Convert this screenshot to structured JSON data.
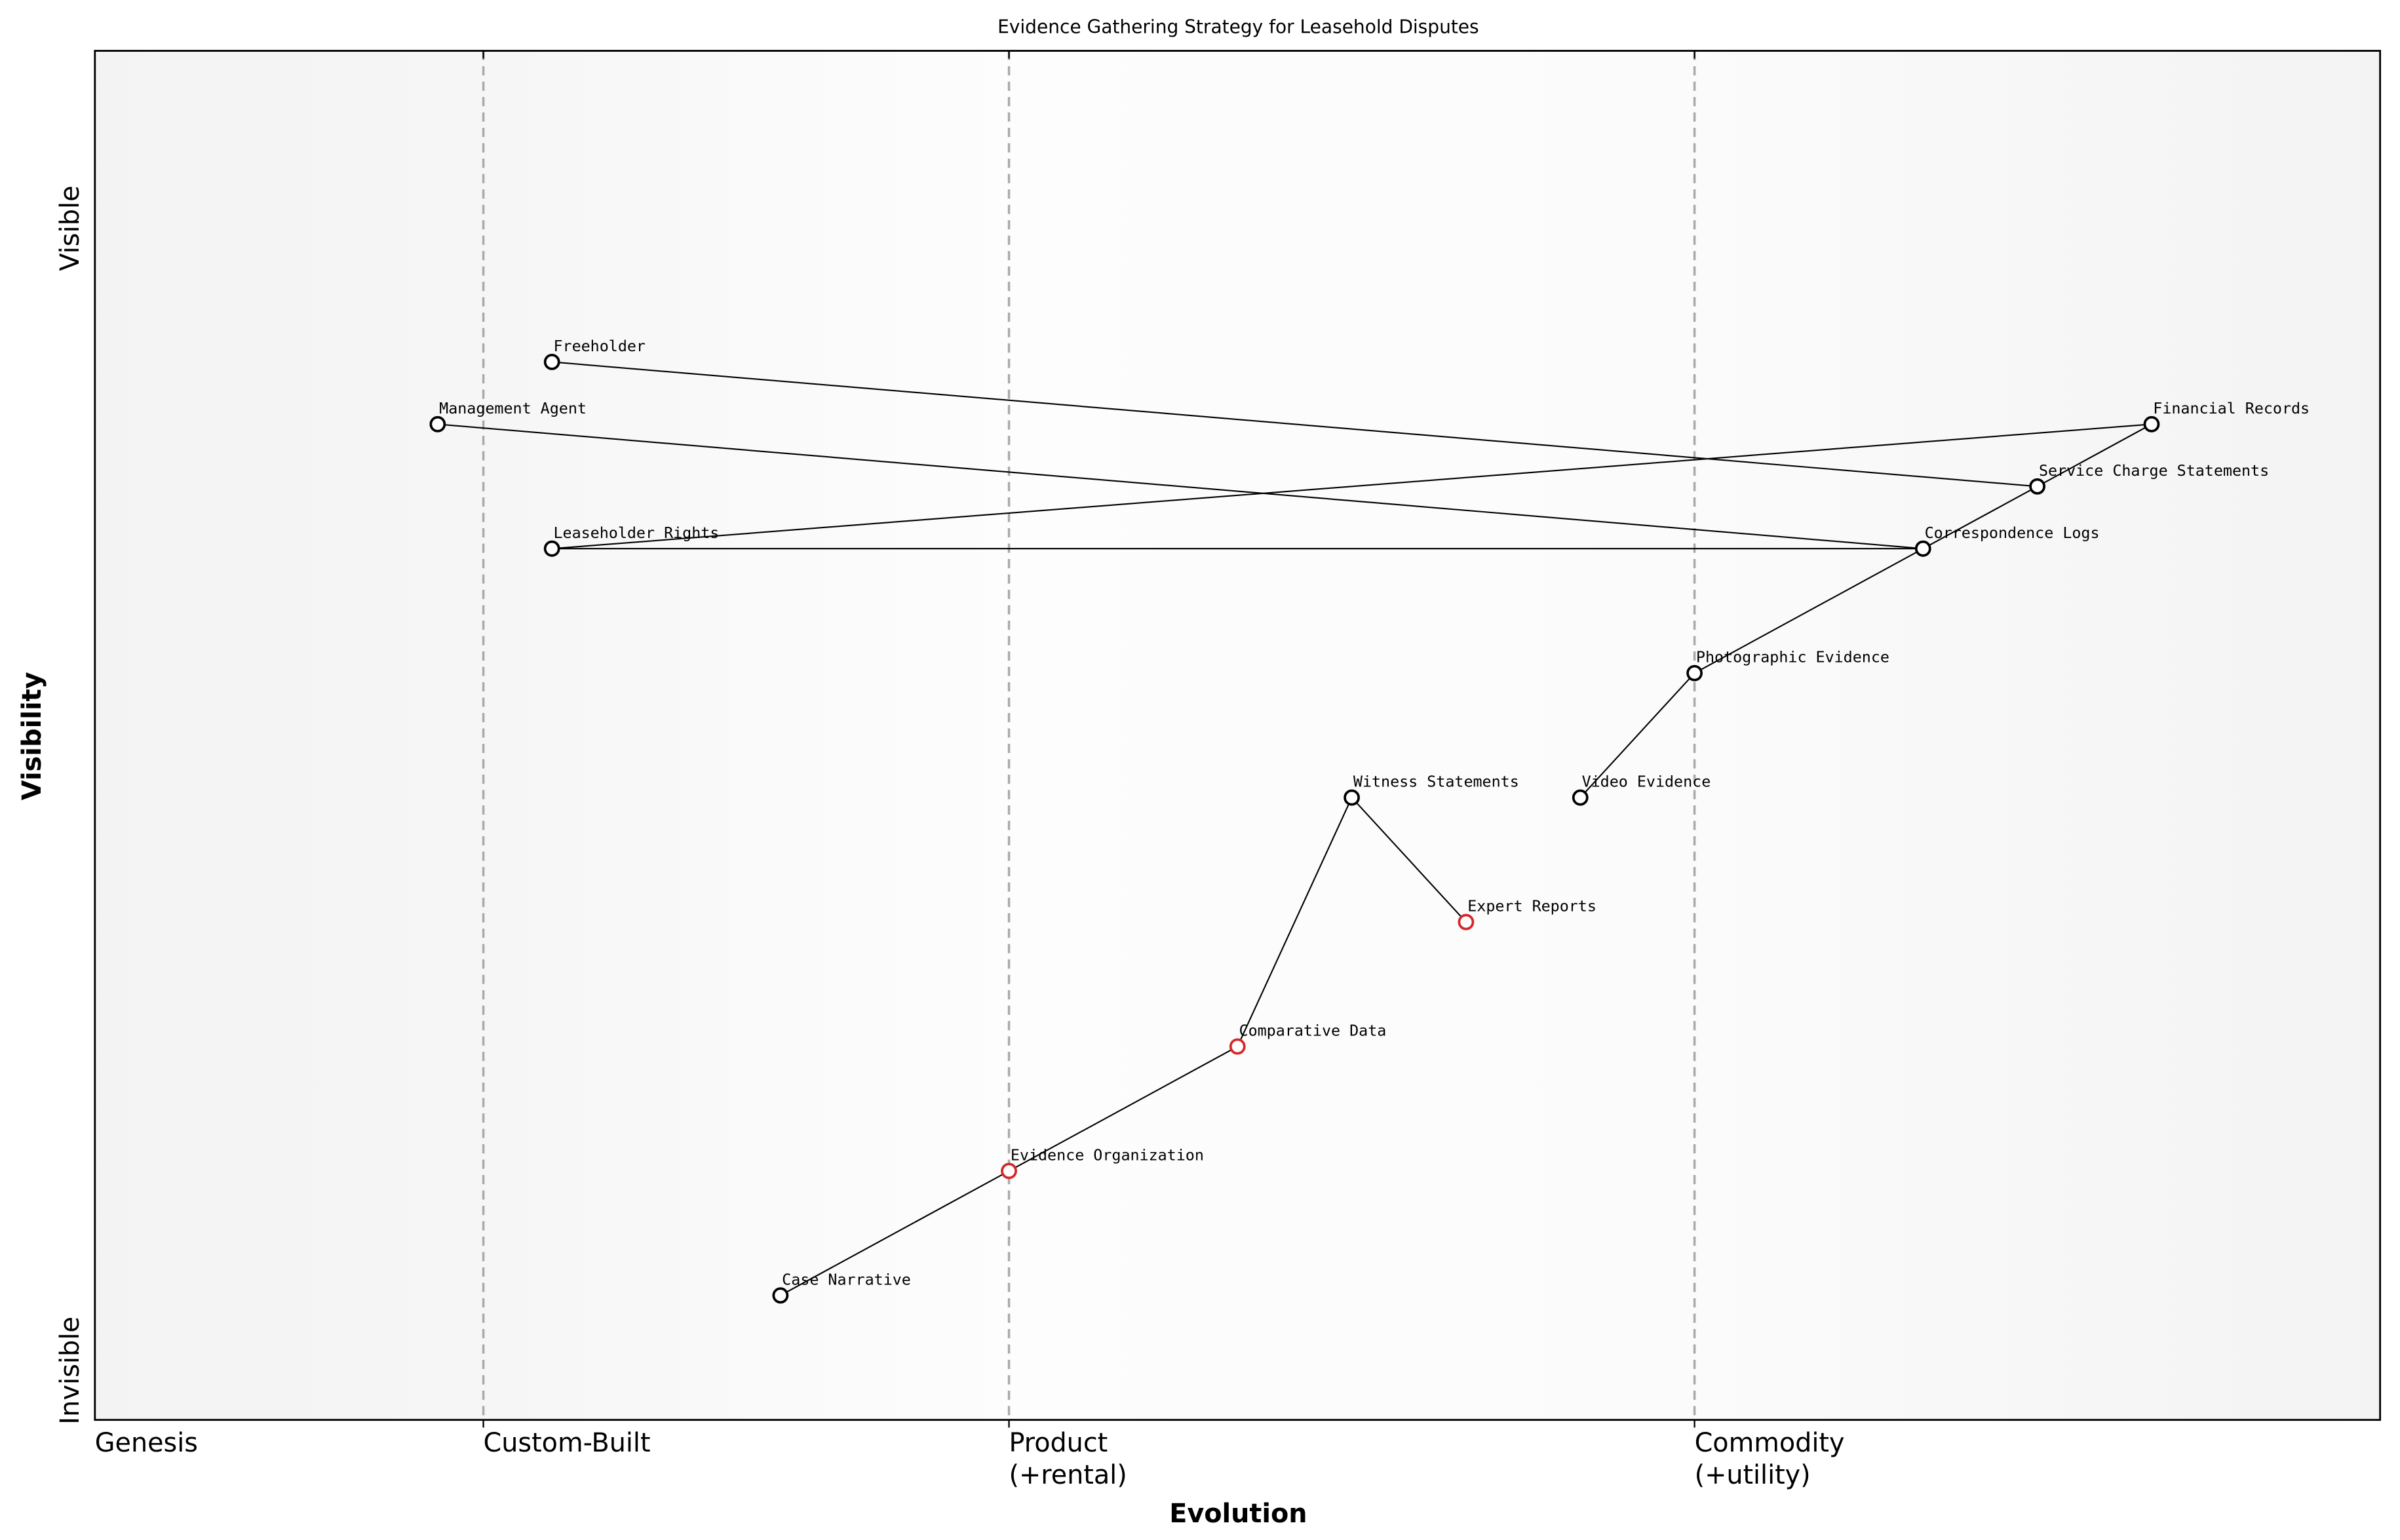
{
  "chart_data": {
    "type": "wardley",
    "title": "Evidence Gathering Strategy for Leasehold Disputes",
    "xlabel": "Evolution",
    "ylabel": "Visibility",
    "xlim": [
      0,
      1
    ],
    "ylim": [
      0,
      1.1
    ],
    "y_top_label": "Visible",
    "y_bottom_label": "Invisible",
    "stages": [
      {
        "value": 0,
        "label": [
          "Genesis"
        ]
      },
      {
        "value": 0.17,
        "label": [
          "Custom-Built"
        ]
      },
      {
        "value": 0.4,
        "label": [
          "Product",
          "(+rental)"
        ]
      },
      {
        "value": 0.7,
        "label": [
          "Commodity",
          "(+utility)"
        ]
      }
    ],
    "nodes": [
      {
        "name": "Freeholder",
        "evolution": 0.2,
        "visibility": 0.85,
        "color": "#000000"
      },
      {
        "name": "Management Agent",
        "evolution": 0.15,
        "visibility": 0.8,
        "color": "#000000"
      },
      {
        "name": "Leaseholder Rights",
        "evolution": 0.2,
        "visibility": 0.7,
        "color": "#000000"
      },
      {
        "name": "Financial Records",
        "evolution": 0.9,
        "visibility": 0.8,
        "color": "#000000"
      },
      {
        "name": "Service Charge Statements",
        "evolution": 0.85,
        "visibility": 0.75,
        "color": "#000000"
      },
      {
        "name": "Correspondence Logs",
        "evolution": 0.8,
        "visibility": 0.7,
        "color": "#000000"
      },
      {
        "name": "Photographic Evidence",
        "evolution": 0.7,
        "visibility": 0.6,
        "color": "#000000"
      },
      {
        "name": "Video Evidence",
        "evolution": 0.65,
        "visibility": 0.5,
        "color": "#000000"
      },
      {
        "name": "Witness Statements",
        "evolution": 0.55,
        "visibility": 0.5,
        "color": "#000000"
      },
      {
        "name": "Expert Reports",
        "evolution": 0.6,
        "visibility": 0.4,
        "color": "#d62728"
      },
      {
        "name": "Comparative Data",
        "evolution": 0.5,
        "visibility": 0.3,
        "color": "#d62728"
      },
      {
        "name": "Evidence Organization",
        "evolution": 0.4,
        "visibility": 0.2,
        "color": "#d62728"
      },
      {
        "name": "Case Narrative",
        "evolution": 0.3,
        "visibility": 0.1,
        "color": "#000000"
      }
    ],
    "links": [
      [
        "Freeholder",
        "Service Charge Statements"
      ],
      [
        "Management Agent",
        "Correspondence Logs"
      ],
      [
        "Leaseholder Rights",
        "Financial Records"
      ],
      [
        "Leaseholder Rights",
        "Correspondence Logs"
      ],
      [
        "Financial Records",
        "Service Charge Statements"
      ],
      [
        "Service Charge Statements",
        "Correspondence Logs"
      ],
      [
        "Correspondence Logs",
        "Photographic Evidence"
      ],
      [
        "Photographic Evidence",
        "Video Evidence"
      ],
      [
        "Witness Statements",
        "Expert Reports"
      ],
      [
        "Witness Statements",
        "Comparative Data"
      ],
      [
        "Comparative Data",
        "Evidence Organization"
      ],
      [
        "Evidence Organization",
        "Case Narrative"
      ]
    ]
  }
}
